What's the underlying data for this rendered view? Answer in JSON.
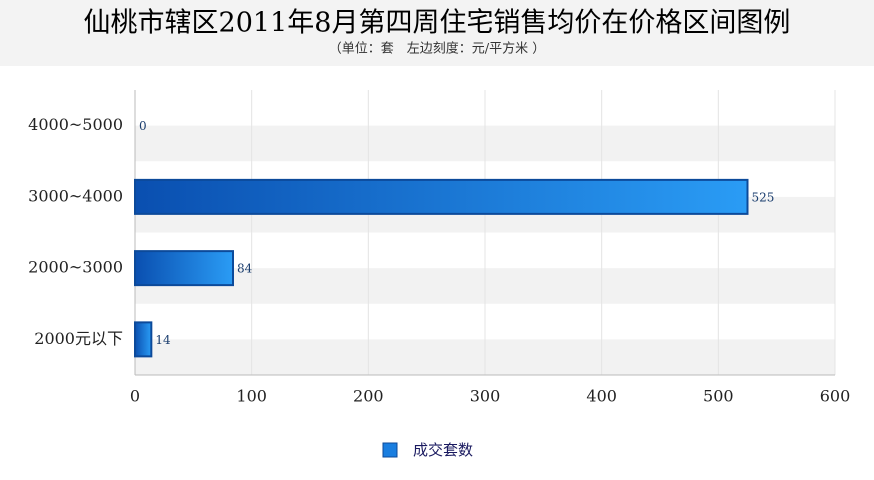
{
  "chart_data": {
    "type": "bar",
    "orientation": "horizontal",
    "title": "仙桃市辖区2011年8月第四周住宅销售均价在价格区间图例",
    "subtitle": "（单位：套　左边刻度：元/平方米 ）",
    "categories": [
      "4000~5000",
      "3000~4000",
      "2000~3000",
      "2000元以下"
    ],
    "series": [
      {
        "name": "成交套数",
        "color": "#1a7ee0",
        "values": [
          0,
          525,
          84,
          14
        ]
      }
    ],
    "xlim": [
      0,
      600
    ],
    "xticks": [
      0,
      100,
      200,
      300,
      400,
      500,
      600
    ],
    "grid": true,
    "legend": "bottom"
  }
}
